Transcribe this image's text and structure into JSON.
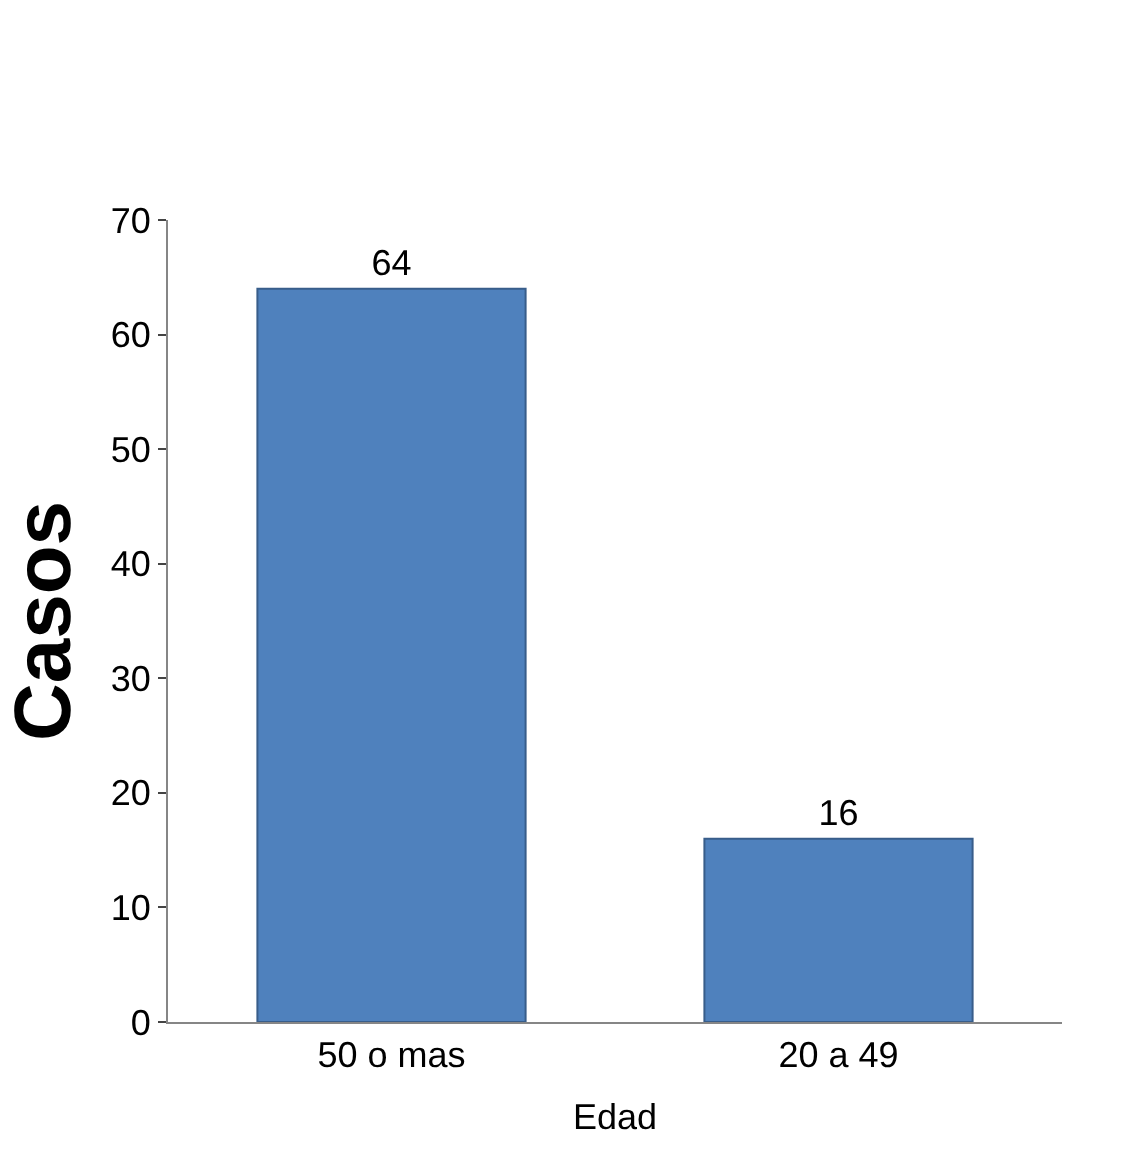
{
  "chart_data": {
    "type": "bar",
    "categories": [
      "50 o mas",
      "20 a 49"
    ],
    "values": [
      64,
      16
    ],
    "color": "#4f81bd",
    "ylabel": "Casos",
    "xlabel": "Edad",
    "ylim": [
      0,
      70
    ],
    "yticks": [
      0,
      10,
      20,
      30,
      40,
      50,
      60,
      70
    ],
    "data_labels": true
  }
}
